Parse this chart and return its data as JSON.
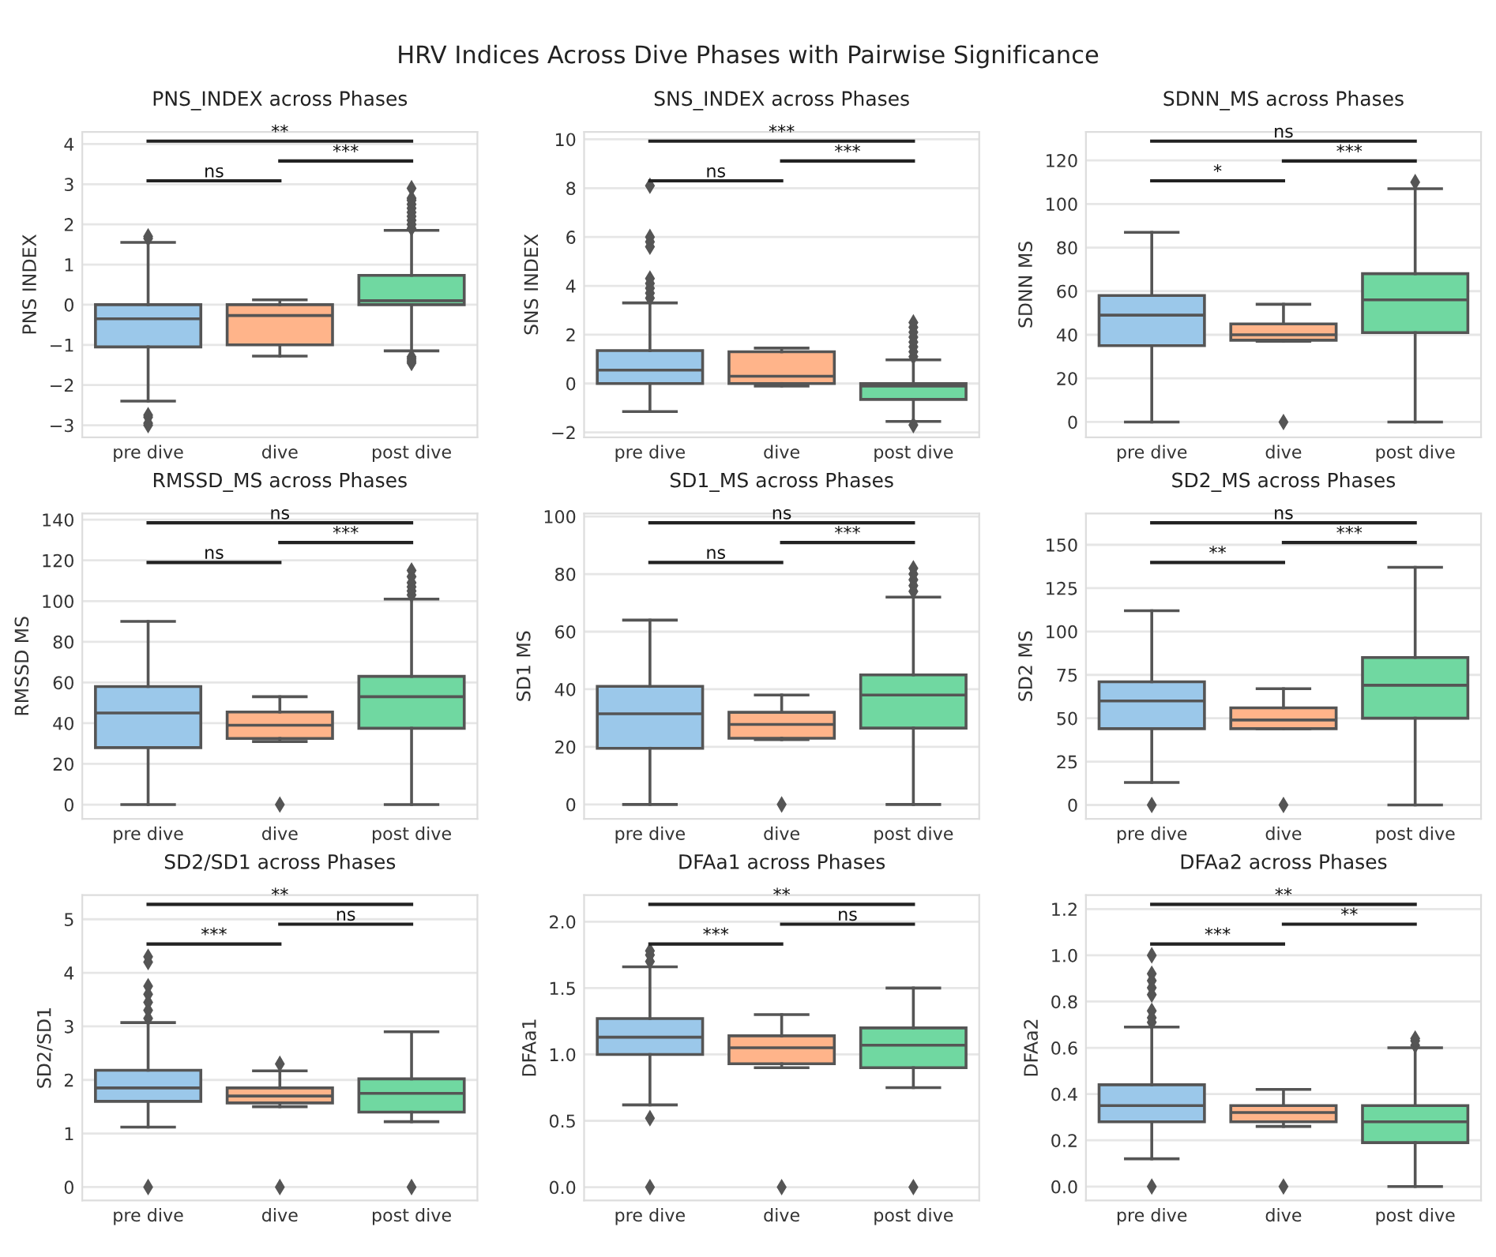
{
  "chart_data": [
    {
      "type": "box",
      "title": "PNS_INDEX across Phases",
      "ylabel": "PNS INDEX",
      "categories": [
        "pre dive",
        "dive",
        "post dive"
      ],
      "colors": [
        "#9bc8ea",
        "#ffb48a",
        "#70d8a1"
      ],
      "ylim": [
        -3.3,
        4.3
      ],
      "yticks": [
        -3,
        -2,
        -1,
        0,
        1,
        2,
        3,
        4
      ],
      "grid": "y",
      "annotations": [
        "ns",
        "***",
        "**",
        "HRV Indices Across Dive Phases with Pairwise Significance"
      ],
      "boxes": [
        {
          "low": -2.4,
          "q1": -1.05,
          "median": -0.35,
          "q3": 0,
          "high": 1.55,
          "outliers": [
            1.65,
            1.7,
            -2.75,
            -2.8,
            -2.95,
            -3.0
          ]
        },
        {
          "low": -1.28,
          "q1": -1.0,
          "median": -0.27,
          "q3": 0,
          "high": 0.12
        },
        {
          "low": -1.15,
          "q1": 0,
          "median": 0.1,
          "q3": 0.73,
          "high": 1.85,
          "outliers": [
            1.9,
            2.0,
            2.1,
            2.2,
            2.3,
            2.4,
            2.5,
            2.6,
            2.65,
            2.9,
            -1.3,
            -1.35,
            -1.4,
            -1.45
          ]
        }
      ]
    },
    {
      "type": "box",
      "title": "SNS_INDEX across Phases",
      "ylabel": "SNS INDEX",
      "categories": [
        "pre dive",
        "dive",
        "post dive"
      ],
      "colors": [
        "#9bc8ea",
        "#ffb48a",
        "#70d8a1"
      ],
      "ylim": [
        -2.2,
        10.3
      ],
      "yticks": [
        -2,
        0,
        2,
        4,
        6,
        8,
        10
      ],
      "grid": "y",
      "annotations": [
        "ns",
        "***",
        "***"
      ],
      "boxes": [
        {
          "low": -1.15,
          "q1": 0,
          "median": 0.55,
          "q3": 1.35,
          "high": 3.3,
          "outliers": [
            3.5,
            3.7,
            3.9,
            4.1,
            4.3,
            5.6,
            5.8,
            6.0,
            8.1
          ]
        },
        {
          "low": -0.1,
          "q1": 0,
          "median": 0.3,
          "q3": 1.3,
          "high": 1.45
        },
        {
          "low": -1.55,
          "q1": -0.65,
          "median": -0.1,
          "q3": 0,
          "high": 0.97,
          "outliers": [
            1.1,
            1.3,
            1.5,
            1.7,
            1.9,
            2.1,
            2.3,
            2.5,
            -1.7
          ]
        }
      ]
    },
    {
      "type": "box",
      "title": "SDNN_MS across Phases",
      "ylabel": "SDNN MS",
      "categories": [
        "pre dive",
        "dive",
        "post dive"
      ],
      "colors": [
        "#9bc8ea",
        "#ffb48a",
        "#70d8a1"
      ],
      "ylim": [
        -7,
        133
      ],
      "yticks": [
        0,
        20,
        40,
        60,
        80,
        100,
        120
      ],
      "grid": "y",
      "annotations": [
        "*",
        "***",
        "ns"
      ],
      "boxes": [
        {
          "low": 0,
          "q1": 35,
          "median": 49,
          "q3": 58,
          "high": 87
        },
        {
          "low": 37,
          "q1": 37.5,
          "median": 40,
          "q3": 45,
          "high": 54,
          "outliers": [
            0
          ]
        },
        {
          "low": 0,
          "q1": 41,
          "median": 56,
          "q3": 68,
          "high": 107,
          "outliers": [
            110
          ]
        }
      ]
    },
    {
      "type": "box",
      "title": "RMSSD_MS across Phases",
      "ylabel": "RMSSD MS",
      "categories": [
        "pre dive",
        "dive",
        "post dive"
      ],
      "colors": [
        "#9bc8ea",
        "#ffb48a",
        "#70d8a1"
      ],
      "ylim": [
        -7,
        143
      ],
      "yticks": [
        0,
        20,
        40,
        60,
        80,
        100,
        120,
        140
      ],
      "grid": "y",
      "annotations": [
        "ns",
        "***",
        "ns"
      ],
      "boxes": [
        {
          "low": 0,
          "q1": 28,
          "median": 45,
          "q3": 58,
          "high": 90
        },
        {
          "low": 31,
          "q1": 32.5,
          "median": 39,
          "q3": 45.5,
          "high": 53,
          "outliers": [
            0
          ]
        },
        {
          "low": 0,
          "q1": 37.5,
          "median": 53,
          "q3": 63,
          "high": 101,
          "outliers": [
            103,
            105,
            107,
            109,
            112,
            115
          ]
        }
      ]
    },
    {
      "type": "box",
      "title": "SD1_MS across Phases",
      "ylabel": "SD1 MS",
      "categories": [
        "pre dive",
        "dive",
        "post dive"
      ],
      "colors": [
        "#9bc8ea",
        "#ffb48a",
        "#70d8a1"
      ],
      "ylim": [
        -5,
        101
      ],
      "yticks": [
        0,
        20,
        40,
        60,
        80,
        100
      ],
      "grid": "y",
      "annotations": [
        "ns",
        "***",
        "ns"
      ],
      "boxes": [
        {
          "low": 0,
          "q1": 19.5,
          "median": 31.5,
          "q3": 41,
          "high": 64
        },
        {
          "low": 22.5,
          "q1": 23,
          "median": 27.8,
          "q3": 32,
          "high": 38,
          "outliers": [
            0
          ]
        },
        {
          "low": 0,
          "q1": 26.5,
          "median": 38,
          "q3": 45,
          "high": 72,
          "outliers": [
            74,
            76,
            78,
            80,
            82
          ]
        }
      ]
    },
    {
      "type": "box",
      "title": "SD2_MS across Phases",
      "ylabel": "SD2 MS",
      "categories": [
        "pre dive",
        "dive",
        "post dive"
      ],
      "colors": [
        "#9bc8ea",
        "#ffb48a",
        "#70d8a1"
      ],
      "ylim": [
        -8,
        168
      ],
      "yticks": [
        0,
        25,
        50,
        75,
        100,
        125,
        150
      ],
      "grid": "y",
      "annotations": [
        "**",
        "***",
        "ns"
      ],
      "boxes": [
        {
          "low": 13,
          "q1": 44,
          "median": 60,
          "q3": 71,
          "high": 112,
          "outliers": [
            0
          ]
        },
        {
          "low": 44,
          "q1": 44,
          "median": 49,
          "q3": 56,
          "high": 67,
          "outliers": [
            0
          ]
        },
        {
          "low": 0,
          "q1": 50,
          "median": 69,
          "q3": 85,
          "high": 137
        }
      ]
    },
    {
      "type": "box",
      "title": "SD2/SD1 across Phases",
      "ylabel": "SD2/SD1",
      "categories": [
        "pre dive",
        "dive",
        "post dive"
      ],
      "colors": [
        "#9bc8ea",
        "#ffb48a",
        "#70d8a1"
      ],
      "ylim": [
        -0.25,
        5.45
      ],
      "yticks": [
        0,
        1,
        2,
        3,
        4,
        5
      ],
      "grid": "y",
      "annotations": [
        "***",
        "ns",
        "**"
      ],
      "boxes": [
        {
          "low": 1.12,
          "q1": 1.6,
          "median": 1.85,
          "q3": 2.18,
          "high": 3.07,
          "outliers": [
            0,
            3.15,
            3.3,
            3.45,
            3.6,
            3.75,
            4.2,
            4.3
          ]
        },
        {
          "low": 1.5,
          "q1": 1.57,
          "median": 1.7,
          "q3": 1.85,
          "high": 2.17,
          "outliers": [
            0,
            2.3
          ]
        },
        {
          "low": 1.22,
          "q1": 1.4,
          "median": 1.75,
          "q3": 2.02,
          "high": 2.9,
          "outliers": [
            0
          ]
        }
      ]
    },
    {
      "type": "box",
      "title": "DFAa1 across Phases",
      "ylabel": "DFAa1",
      "categories": [
        "pre dive",
        "dive",
        "post dive"
      ],
      "colors": [
        "#9bc8ea",
        "#ffb48a",
        "#70d8a1"
      ],
      "ylim": [
        -0.1,
        2.2
      ],
      "yticks": [
        {
          "value": 0,
          "label": "0.0"
        },
        0.5,
        {
          "value": 1,
          "label": "1.0"
        },
        1.5,
        {
          "value": 2,
          "label": "2.0"
        }
      ],
      "grid": "y",
      "annotations": [
        "***",
        "ns",
        "**"
      ],
      "boxes": [
        {
          "low": 0.62,
          "q1": 1.0,
          "median": 1.13,
          "q3": 1.27,
          "high": 1.66,
          "outliers": [
            0,
            0.52,
            1.7,
            1.75,
            1.78
          ]
        },
        {
          "low": 0.9,
          "q1": 0.93,
          "median": 1.05,
          "q3": 1.14,
          "high": 1.3,
          "outliers": [
            0
          ]
        },
        {
          "low": 0.75,
          "q1": 0.9,
          "median": 1.07,
          "q3": 1.2,
          "high": 1.5,
          "outliers": [
            0
          ]
        }
      ]
    },
    {
      "type": "box",
      "title": "DFAa2 across Phases",
      "ylabel": "DFAa2",
      "categories": [
        "pre dive",
        "dive",
        "post dive"
      ],
      "colors": [
        "#9bc8ea",
        "#ffb48a",
        "#70d8a1"
      ],
      "ylim": [
        -0.06,
        1.26
      ],
      "yticks": [
        {
          "value": 0,
          "label": "0.0"
        },
        0.2,
        0.4,
        0.6,
        0.8,
        {
          "value": 1,
          "label": "1.0"
        },
        1.2
      ],
      "grid": "y",
      "annotations": [
        "***",
        "**",
        "**"
      ],
      "boxes": [
        {
          "low": 0.12,
          "q1": 0.28,
          "median": 0.35,
          "q3": 0.44,
          "high": 0.69,
          "outliers": [
            0,
            0.71,
            0.73,
            0.76,
            0.83,
            0.86,
            0.89,
            0.92,
            1.0
          ]
        },
        {
          "low": 0.26,
          "q1": 0.28,
          "median": 0.32,
          "q3": 0.35,
          "high": 0.42,
          "outliers": [
            0
          ]
        },
        {
          "low": 0,
          "q1": 0.19,
          "median": 0.28,
          "q3": 0.35,
          "high": 0.6,
          "outliers": [
            0.61,
            0.63,
            0.64
          ]
        }
      ]
    }
  ]
}
